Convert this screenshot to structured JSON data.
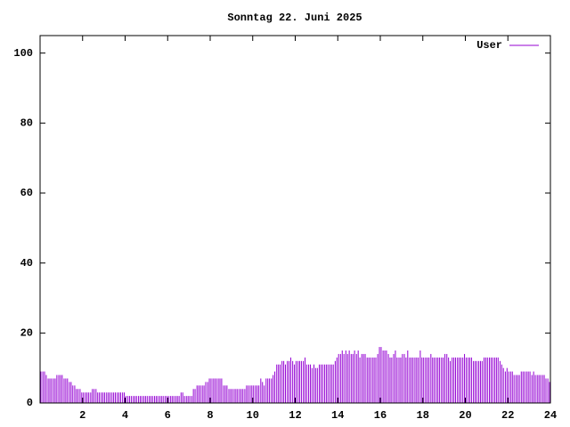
{
  "chart_data": {
    "type": "impulses",
    "title": "Sonntag 22. Juni 2025",
    "xlim": [
      0,
      24
    ],
    "xticks": [
      2,
      4,
      6,
      8,
      10,
      12,
      14,
      16,
      18,
      20,
      22,
      24
    ],
    "ylim": [
      0,
      105
    ],
    "yticks": [
      0,
      20,
      40,
      60,
      80,
      100
    ],
    "legend": "top-right",
    "x": [
      0.04,
      0.13,
      0.21,
      0.29,
      0.38,
      0.46,
      0.54,
      0.63,
      0.71,
      0.79,
      0.88,
      0.96,
      1.04,
      1.13,
      1.21,
      1.29,
      1.38,
      1.46,
      1.54,
      1.63,
      1.71,
      1.79,
      1.88,
      1.96,
      2.04,
      2.13,
      2.21,
      2.29,
      2.38,
      2.46,
      2.54,
      2.63,
      2.71,
      2.79,
      2.88,
      2.96,
      3.04,
      3.13,
      3.21,
      3.29,
      3.38,
      3.46,
      3.54,
      3.63,
      3.71,
      3.79,
      3.88,
      3.96,
      4.04,
      4.13,
      4.21,
      4.29,
      4.38,
      4.46,
      4.54,
      4.63,
      4.71,
      4.79,
      4.88,
      4.96,
      5.04,
      5.13,
      5.21,
      5.29,
      5.38,
      5.46,
      5.54,
      5.63,
      5.71,
      5.79,
      5.88,
      5.96,
      6.04,
      6.13,
      6.21,
      6.29,
      6.38,
      6.46,
      6.54,
      6.63,
      6.71,
      6.79,
      6.88,
      6.96,
      7.04,
      7.13,
      7.21,
      7.29,
      7.38,
      7.46,
      7.54,
      7.63,
      7.71,
      7.79,
      7.88,
      7.96,
      8.04,
      8.13,
      8.21,
      8.29,
      8.38,
      8.46,
      8.54,
      8.63,
      8.71,
      8.79,
      8.88,
      8.96,
      9.04,
      9.13,
      9.21,
      9.29,
      9.38,
      9.46,
      9.54,
      9.63,
      9.71,
      9.79,
      9.88,
      9.96,
      10.04,
      10.13,
      10.21,
      10.29,
      10.38,
      10.46,
      10.54,
      10.63,
      10.71,
      10.79,
      10.88,
      10.96,
      11.04,
      11.13,
      11.21,
      11.29,
      11.38,
      11.46,
      11.54,
      11.63,
      11.71,
      11.79,
      11.88,
      11.96,
      12.04,
      12.13,
      12.21,
      12.29,
      12.38,
      12.46,
      12.54,
      12.63,
      12.71,
      12.79,
      12.88,
      12.96,
      13.04,
      13.13,
      13.21,
      13.29,
      13.38,
      13.46,
      13.54,
      13.63,
      13.71,
      13.79,
      13.88,
      13.96,
      14.04,
      14.13,
      14.21,
      14.29,
      14.38,
      14.46,
      14.54,
      14.63,
      14.71,
      14.79,
      14.88,
      14.96,
      15.04,
      15.13,
      15.21,
      15.29,
      15.38,
      15.46,
      15.54,
      15.63,
      15.71,
      15.79,
      15.88,
      15.96,
      16.04,
      16.13,
      16.21,
      16.29,
      16.38,
      16.46,
      16.54,
      16.63,
      16.71,
      16.79,
      16.88,
      16.96,
      17.04,
      17.13,
      17.21,
      17.29,
      17.38,
      17.46,
      17.54,
      17.63,
      17.71,
      17.79,
      17.88,
      17.96,
      18.04,
      18.13,
      18.21,
      18.29,
      18.38,
      18.46,
      18.54,
      18.63,
      18.71,
      18.79,
      18.88,
      18.96,
      19.04,
      19.13,
      19.21,
      19.29,
      19.38,
      19.46,
      19.54,
      19.63,
      19.71,
      19.79,
      19.88,
      19.96,
      20.04,
      20.13,
      20.21,
      20.29,
      20.38,
      20.46,
      20.54,
      20.63,
      20.71,
      20.79,
      20.88,
      20.96,
      21.04,
      21.13,
      21.21,
      21.29,
      21.38,
      21.46,
      21.54,
      21.63,
      21.71,
      21.79,
      21.88,
      21.96,
      22.04,
      22.13,
      22.21,
      22.29,
      22.38,
      22.46,
      22.54,
      22.63,
      22.71,
      22.79,
      22.88,
      22.96,
      23.04,
      23.13,
      23.21,
      23.29,
      23.38,
      23.46,
      23.54,
      23.63,
      23.71,
      23.79,
      23.88,
      23.96
    ],
    "series": [
      {
        "name": "User",
        "color": "#9400d3",
        "values": [
          9,
          9,
          9,
          8,
          7,
          7,
          7,
          7,
          7,
          8,
          8,
          8,
          8,
          7,
          7,
          7,
          6,
          6,
          5,
          5,
          4,
          4,
          4,
          3,
          3,
          3,
          3,
          3,
          3,
          4,
          4,
          4,
          3,
          3,
          3,
          3,
          3,
          3,
          3,
          3,
          3,
          3,
          3,
          3,
          3,
          3,
          3,
          3,
          2,
          2,
          2,
          2,
          2,
          2,
          2,
          2,
          2,
          2,
          2,
          2,
          2,
          2,
          2,
          2,
          2,
          2,
          2,
          2,
          2,
          2,
          2,
          2,
          2,
          2,
          2,
          2,
          2,
          2,
          2,
          3,
          3,
          2,
          2,
          2,
          2,
          2,
          4,
          4,
          5,
          5,
          5,
          5,
          5,
          6,
          6,
          7,
          7,
          7,
          7,
          7,
          7,
          7,
          7,
          5,
          5,
          5,
          4,
          4,
          4,
          4,
          4,
          4,
          4,
          4,
          4,
          4,
          5,
          5,
          5,
          5,
          5,
          5,
          5,
          5,
          7,
          6,
          5,
          7,
          7,
          7,
          7,
          8,
          9,
          11,
          11,
          11,
          12,
          12,
          11,
          12,
          12,
          13,
          12,
          11,
          12,
          12,
          12,
          12,
          12,
          13,
          11,
          11,
          11,
          10,
          11,
          10,
          10,
          11,
          11,
          11,
          11,
          11,
          11,
          11,
          11,
          11,
          12,
          13,
          14,
          14,
          15,
          14,
          15,
          14,
          15,
          14,
          14,
          15,
          14,
          15,
          13,
          14,
          14,
          14,
          13,
          13,
          13,
          13,
          13,
          13,
          14,
          16,
          16,
          15,
          15,
          15,
          14,
          13,
          13,
          14,
          15,
          13,
          13,
          13,
          14,
          14,
          13,
          15,
          13,
          13,
          13,
          13,
          13,
          13,
          15,
          13,
          13,
          13,
          13,
          13,
          14,
          13,
          13,
          13,
          13,
          13,
          13,
          13,
          14,
          14,
          13,
          12,
          13,
          13,
          13,
          13,
          13,
          13,
          13,
          14,
          13,
          13,
          13,
          13,
          12,
          12,
          12,
          12,
          12,
          12,
          13,
          13,
          13,
          13,
          13,
          13,
          13,
          13,
          13,
          12,
          11,
          10,
          9,
          10,
          9,
          9,
          9,
          8,
          8,
          8,
          8,
          9,
          9,
          9,
          9,
          9,
          9,
          8,
          9,
          8,
          8,
          8,
          8,
          8,
          8,
          7,
          7,
          6
        ]
      }
    ]
  }
}
